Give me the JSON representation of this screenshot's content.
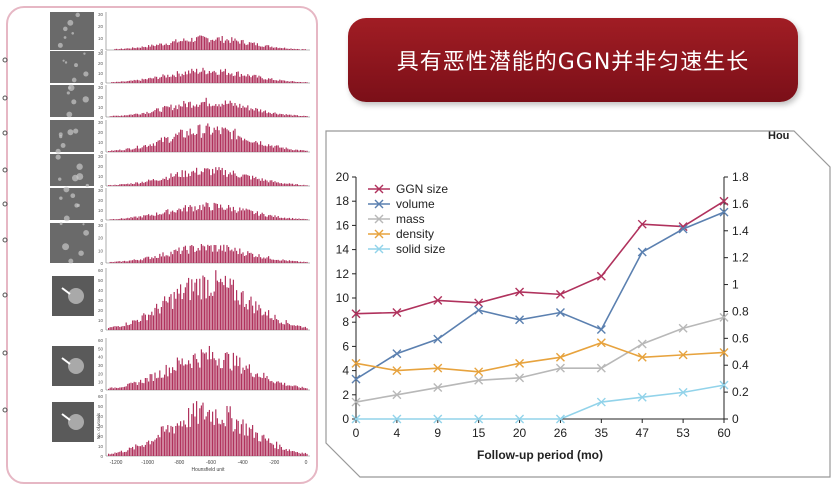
{
  "banner": {
    "title": "具有恶性潜能的GGN并非匀速生长"
  },
  "histogram_panel": {
    "y_ticks_small": [
      "0",
      "10",
      "20",
      "30"
    ],
    "y_ticks_large": [
      "0",
      "10",
      "20",
      "30",
      "40",
      "50",
      "60"
    ],
    "x_ticks": [
      "-1200",
      "-1000",
      "-800",
      "-600",
      "-400",
      "-200",
      "0"
    ],
    "xlabel": "Hounsfield unit",
    "ylabel": "No. of voxels",
    "bar_color": "#b0325d"
  },
  "corner_label": "Hou",
  "chart_data": {
    "type": "line",
    "x": [
      "0",
      "4",
      "9",
      "15",
      "20",
      "26",
      "35",
      "47",
      "53",
      "60"
    ],
    "xlabel": "Follow-up period (mo)",
    "ylabel": "",
    "ylim": [
      0,
      20
    ],
    "yticks_left": [
      "0",
      "2",
      "4",
      "6",
      "8",
      "10",
      "12",
      "14",
      "16",
      "18",
      "20"
    ],
    "ylim_right": [
      0,
      1.8
    ],
    "yticks_right": [
      "0",
      "0.2",
      "0.4",
      "0.6",
      "0.8",
      "1",
      "1.2",
      "1.4",
      "1.6",
      "1.8"
    ],
    "grid": false,
    "legend": "top-left",
    "series": [
      {
        "name": "GGN size",
        "color": "#b0325d",
        "marker": "x",
        "values": [
          8.7,
          8.8,
          9.8,
          9.6,
          10.5,
          10.3,
          11.8,
          16.1,
          15.9,
          18.0
        ]
      },
      {
        "name": "volume",
        "color": "#5b80b0",
        "marker": "x",
        "values": [
          3.3,
          5.4,
          6.6,
          9.0,
          8.2,
          8.8,
          7.4,
          13.8,
          15.7,
          17.1
        ]
      },
      {
        "name": "mass",
        "color": "#b8b8b8",
        "marker": "x",
        "values": [
          1.4,
          2.0,
          2.6,
          3.2,
          3.4,
          4.2,
          4.2,
          6.2,
          7.5,
          8.4
        ]
      },
      {
        "name": "density",
        "color": "#e7a33e",
        "marker": "x",
        "values": [
          4.6,
          4.0,
          4.2,
          3.9,
          4.6,
          5.1,
          6.3,
          5.1,
          5.3,
          5.5
        ]
      },
      {
        "name": "solid size",
        "color": "#92d3ea",
        "marker": "x",
        "values": [
          0.0,
          0.0,
          0.0,
          0.0,
          0.0,
          0.0,
          1.4,
          1.8,
          2.2,
          2.8
        ]
      }
    ]
  }
}
